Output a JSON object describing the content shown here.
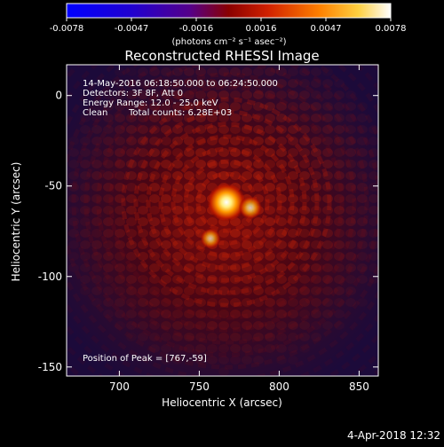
{
  "chart_data": {
    "type": "heatmap",
    "title": "Reconstructed RHESSI Image",
    "xlabel": "Heliocentric X (arcsec)",
    "ylabel": "Heliocentric Y (arcsec)",
    "xlim": [
      667,
      862
    ],
    "ylim": [
      -155,
      17
    ],
    "x_ticks": [
      "700",
      "750",
      "800",
      "850"
    ],
    "y_ticks": [
      "0",
      "-50",
      "-100",
      "-150"
    ],
    "x_tick_values": [
      700,
      750,
      800,
      850
    ],
    "y_tick_values": [
      0,
      -50,
      -100,
      -150
    ],
    "colorbar": {
      "ticks": [
        "-0.0078",
        "-0.0047",
        "-0.0016",
        "0.0016",
        "0.0047",
        "0.0078"
      ],
      "units": "(photons cm⁻² s⁻¹ asec⁻²)",
      "colors": [
        "#0000ff",
        "#3a00c8",
        "#6a0090",
        "#a00000",
        "#ff4000",
        "#ff9900",
        "#ffe060",
        "#ffffff"
      ]
    },
    "annotations": {
      "time": "14-May-2016 06:18:50.000 to 06:24:50.000",
      "detectors": "Detectors: 3F 8F, Att 0",
      "energy": "Energy Range: 12.0 - 25.0 keV",
      "clean_label": "Clean",
      "counts": "Total counts: 6.28E+03",
      "peak": "Position of Peak = [767,-59]"
    },
    "sources": [
      {
        "x": 767,
        "y": -59,
        "intensity": 1.0
      },
      {
        "x": 782,
        "y": -62,
        "intensity": 0.45
      },
      {
        "x": 757,
        "y": -79,
        "intensity": 0.35
      }
    ]
  },
  "footer": {
    "date": "4-Apr-2018 12:32"
  }
}
